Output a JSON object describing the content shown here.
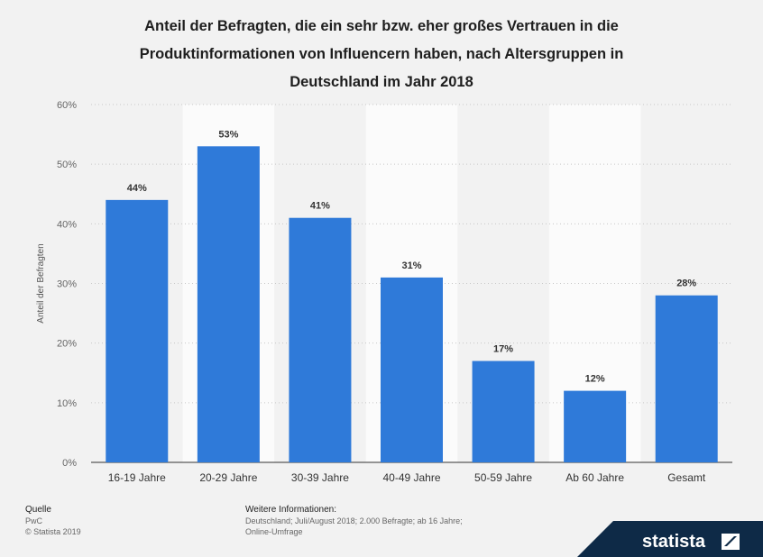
{
  "chart_data": {
    "type": "bar",
    "title": "Anteil der Befragten, die ein sehr bzw. eher großes Vertrauen in die Produktinformationen von Influencern haben, nach Altersgruppen in Deutschland im Jahr 2018",
    "title_lines": [
      "Anteil der Befragten, die ein sehr bzw. eher großes Vertrauen in die",
      "Produktinformationen von Influencern haben, nach Altersgruppen in",
      "Deutschland im Jahr 2018"
    ],
    "categories": [
      "16-19 Jahre",
      "20-29 Jahre",
      "30-39 Jahre",
      "40-49 Jahre",
      "50-59 Jahre",
      "Ab 60 Jahre",
      "Gesamt"
    ],
    "values": [
      44,
      53,
      41,
      31,
      17,
      12,
      28
    ],
    "data_labels": [
      "44%",
      "53%",
      "41%",
      "31%",
      "17%",
      "12%",
      "28%"
    ],
    "ylabel": "Anteil der Befragten",
    "ylim": [
      0,
      60
    ],
    "yticks": [
      0,
      10,
      20,
      30,
      40,
      50,
      60
    ],
    "ytick_labels": [
      "0%",
      "10%",
      "20%",
      "30%",
      "40%",
      "50%",
      "60%"
    ],
    "grid": true,
    "bar_color": "#2f7ad9"
  },
  "footer": {
    "source_heading": "Quelle",
    "source": "PwC",
    "copyright": "© Statista 2019",
    "info_heading": "Weitere Informationen:",
    "info_line1": "Deutschland; Juli/August 2018; 2.000 Befragte; ab 16 Jahre;",
    "info_line2": "Online-Umfrage"
  },
  "brand": {
    "name": "statista",
    "color": "#0e2a47"
  }
}
